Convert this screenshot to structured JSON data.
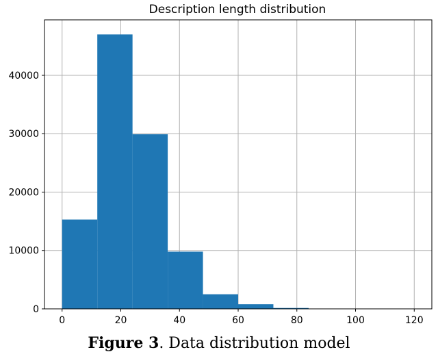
{
  "chart_data": {
    "type": "bar",
    "title": "Description length distribution",
    "xlabel": "",
    "ylabel": "",
    "bin_edges": [
      0,
      12,
      24,
      36,
      48,
      60,
      72,
      84,
      96,
      108,
      120
    ],
    "values": [
      15300,
      47000,
      29900,
      9800,
      2500,
      800,
      150,
      40,
      10,
      5
    ],
    "xlim": [
      -6,
      126
    ],
    "ylim": [
      0,
      49500
    ],
    "xticks": [
      0,
      20,
      40,
      60,
      80,
      100,
      120
    ],
    "yticks": [
      0,
      10000,
      20000,
      30000,
      40000
    ],
    "grid": true,
    "bar_color": "#1f77b4"
  },
  "caption": {
    "label": "Figure 3",
    "text": ". Data distribution model"
  }
}
